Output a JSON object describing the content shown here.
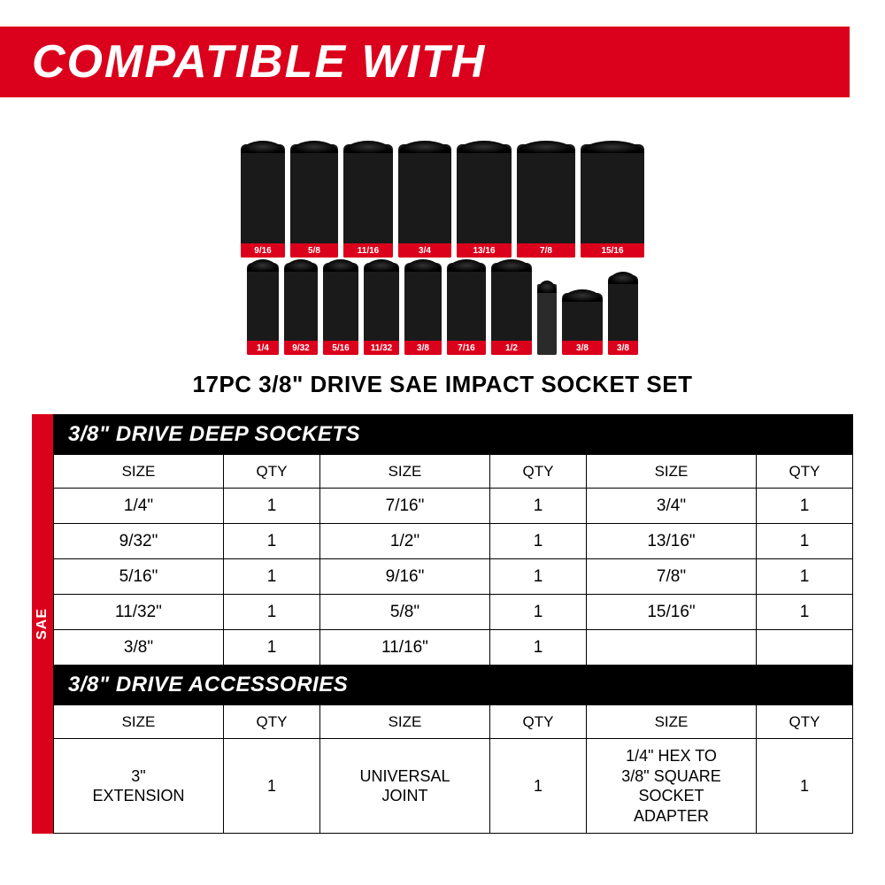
{
  "colors": {
    "brand_red": "#db011c",
    "black": "#000000",
    "white": "#ffffff"
  },
  "typography": {
    "header_fontsize": 52,
    "header_weight": 900,
    "header_style": "italic",
    "product_title_fontsize": 26,
    "section_header_fontsize": 24,
    "col_header_fontsize": 17,
    "data_cell_fontsize": 19
  },
  "header": {
    "title": "COMPATIBLE WITH"
  },
  "product": {
    "title": "17PC 3/8\" DRIVE SAE IMPACT SOCKET SET",
    "top_row_sizes": [
      "9/16",
      "5/8",
      "11/16",
      "3/4",
      "13/16",
      "7/8",
      "15/16"
    ],
    "top_row_widths": [
      50,
      54,
      56,
      60,
      62,
      66,
      72
    ],
    "top_row_height": 128,
    "bottom_row_sizes": [
      "1/4",
      "9/32",
      "5/16",
      "11/32",
      "3/8",
      "7/16",
      "1/2",
      "",
      "3/8",
      "3/8"
    ],
    "bottom_row_widths": [
      36,
      38,
      40,
      40,
      42,
      44,
      46,
      22,
      46,
      34
    ],
    "bottom_row_height": 104
  },
  "tab": {
    "label": "SAE"
  },
  "sections": {
    "sockets": {
      "title": "3/8\" DRIVE DEEP SOCKETS",
      "headers": {
        "size": "SIZE",
        "qty": "QTY"
      },
      "columns": [
        [
          {
            "size": "1/4\"",
            "qty": "1"
          },
          {
            "size": "9/32\"",
            "qty": "1"
          },
          {
            "size": "5/16\"",
            "qty": "1"
          },
          {
            "size": "11/32\"",
            "qty": "1"
          },
          {
            "size": "3/8\"",
            "qty": "1"
          }
        ],
        [
          {
            "size": "7/16\"",
            "qty": "1"
          },
          {
            "size": "1/2\"",
            "qty": "1"
          },
          {
            "size": "9/16\"",
            "qty": "1"
          },
          {
            "size": "5/8\"",
            "qty": "1"
          },
          {
            "size": "11/16\"",
            "qty": "1"
          }
        ],
        [
          {
            "size": "3/4\"",
            "qty": "1"
          },
          {
            "size": "13/16\"",
            "qty": "1"
          },
          {
            "size": "7/8\"",
            "qty": "1"
          },
          {
            "size": "15/16\"",
            "qty": "1"
          }
        ]
      ]
    },
    "accessories": {
      "title": "3/8\" DRIVE ACCESSORIES",
      "headers": {
        "size": "SIZE",
        "qty": "QTY"
      },
      "items": [
        {
          "size": "3\"\nEXTENSION",
          "qty": "1"
        },
        {
          "size": "UNIVERSAL\nJOINT",
          "qty": "1"
        },
        {
          "size": "1/4\" HEX TO\n3/8\" SQUARE\nSOCKET\nADAPTER",
          "qty": "1"
        }
      ]
    }
  }
}
